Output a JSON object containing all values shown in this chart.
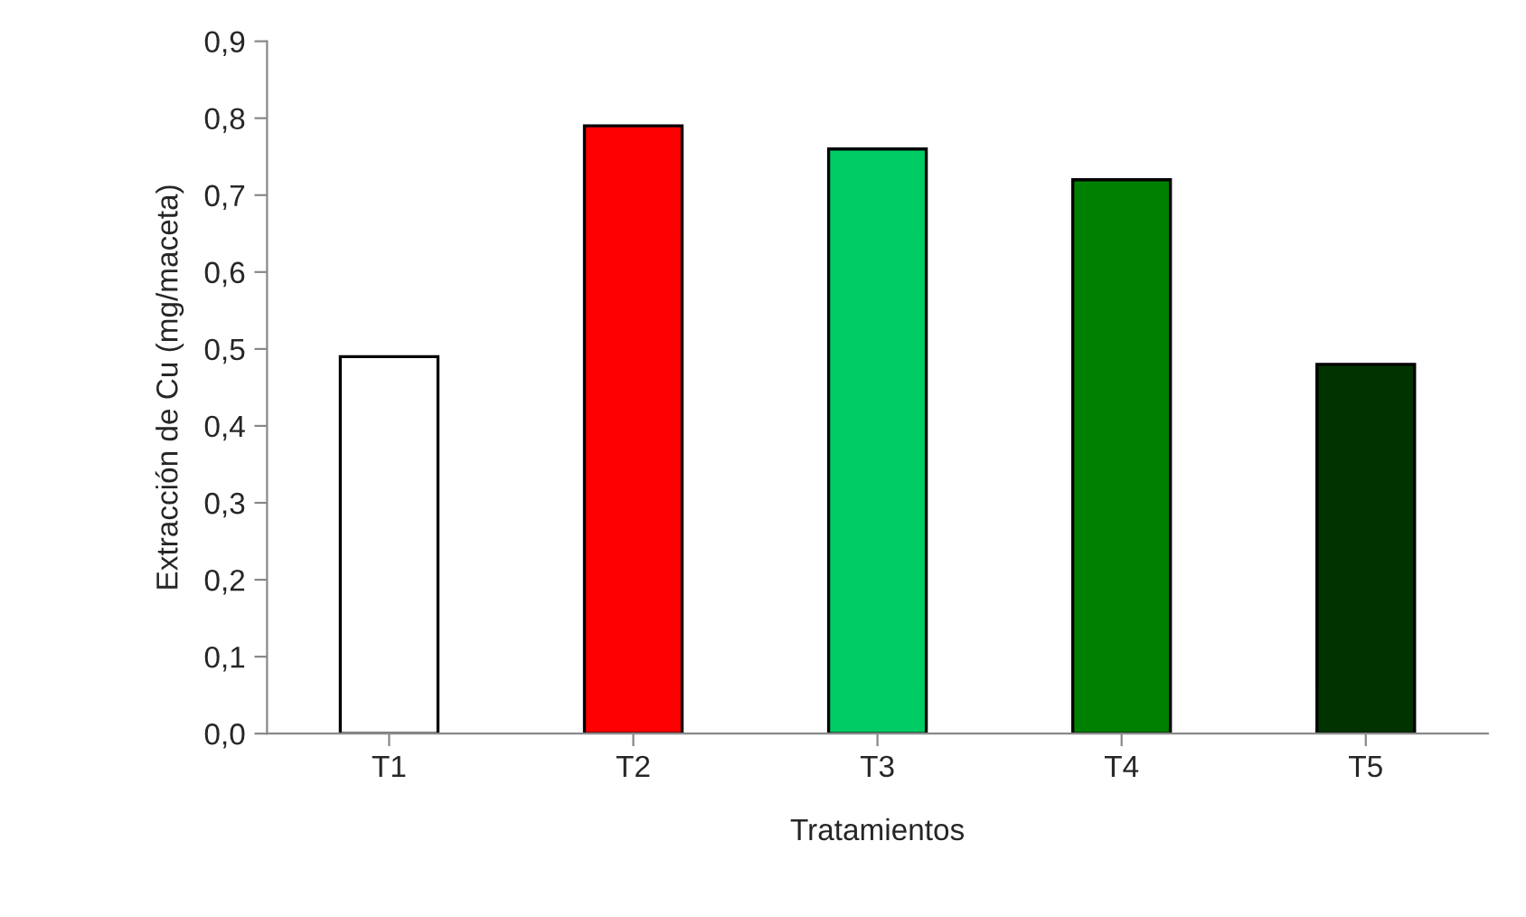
{
  "chart_data": {
    "type": "bar",
    "xlabel": "Tratamientos",
    "ylabel": "Extracción de Cu (mg/maceta)",
    "categories": [
      "T1",
      "T2",
      "T3",
      "T4",
      "T5"
    ],
    "values": [
      0.49,
      0.79,
      0.76,
      0.72,
      0.48
    ],
    "colors": [
      "#ffffff",
      "#ff0000",
      "#00cc66",
      "#008000",
      "#003300"
    ],
    "ylim": [
      0,
      0.9
    ],
    "yticks": [
      {
        "value": 0,
        "label": "0,0"
      },
      {
        "value": 0.1,
        "label": "0,1"
      },
      {
        "value": 0.2,
        "label": "0,2"
      },
      {
        "value": 0.3,
        "label": "0,3"
      },
      {
        "value": 0.4,
        "label": "0,4"
      },
      {
        "value": 0.5,
        "label": "0,5"
      },
      {
        "value": 0.6,
        "label": "0,6"
      },
      {
        "value": 0.7,
        "label": "0,7"
      },
      {
        "value": 0.8,
        "label": "0,8"
      },
      {
        "value": 0.9,
        "label": "0,9"
      }
    ],
    "grid": false,
    "legend": false
  }
}
